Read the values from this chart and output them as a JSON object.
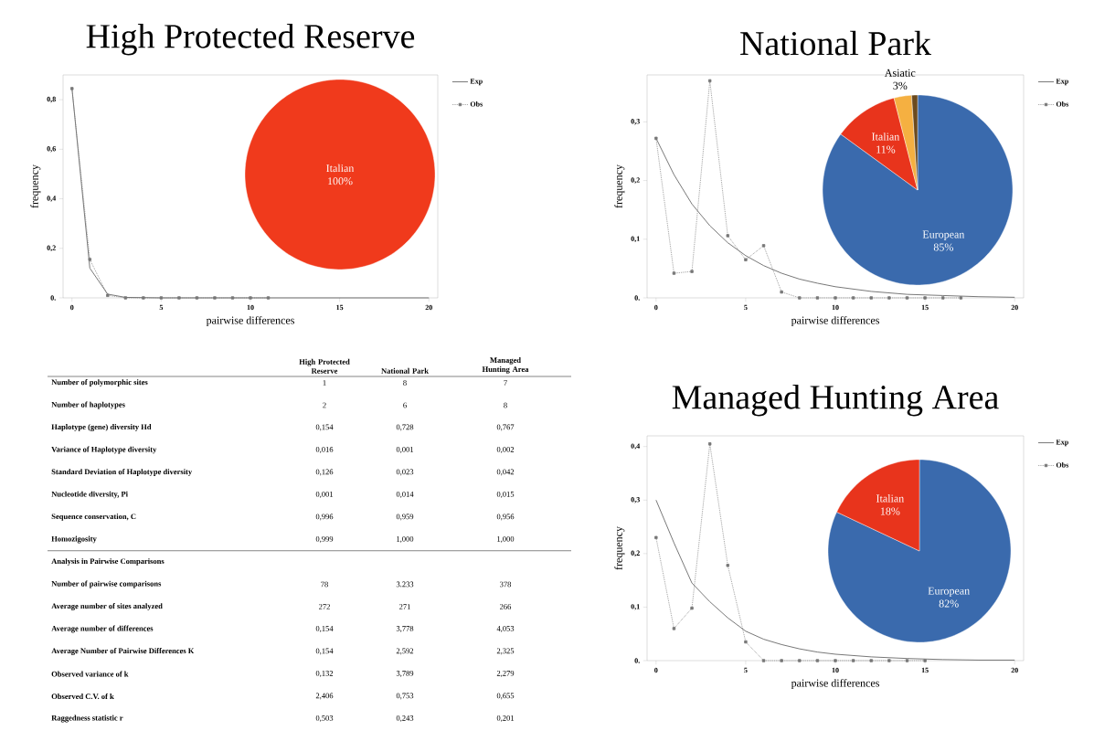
{
  "chart_data": [
    {
      "type": "line",
      "title": "High Protected Reserve",
      "xlabel": "pairwise differences",
      "ylabel": "frequency",
      "xlim": [
        -0.5,
        20.5
      ],
      "xticks": [
        0,
        5,
        10,
        15,
        20
      ],
      "ylim": [
        0,
        0.9
      ],
      "yticks": [
        {
          "value": 0,
          "label": "0."
        },
        {
          "value": 0.2,
          "label": "0,2"
        },
        {
          "value": 0.4,
          "label": "0,4"
        },
        {
          "value": 0.6,
          "label": "0,6"
        },
        {
          "value": 0.8,
          "label": "0,8"
        }
      ],
      "legend": "right",
      "series": [
        {
          "name": "Exp",
          "color": "#555555",
          "line_style": "solid",
          "marker": "none",
          "x": [
            0,
            1,
            2,
            3,
            5,
            10,
            15,
            20
          ],
          "values": [
            0.845,
            0.12,
            0.015,
            0.002,
            0,
            0,
            0,
            0
          ]
        },
        {
          "name": "Obs",
          "color": "#777777",
          "line_style": "dotted",
          "marker": "square",
          "x": [
            0,
            1,
            2,
            3,
            4,
            5,
            6,
            7,
            8,
            9,
            10,
            11
          ],
          "values": [
            0.845,
            0.155,
            0.01,
            0,
            0,
            0,
            0,
            0,
            0,
            0,
            0,
            0
          ]
        }
      ]
    },
    {
      "type": "pie",
      "categories": [
        "Italian"
      ],
      "values": [
        100
      ],
      "value_labels": [
        "100%"
      ],
      "colors": [
        "#f03a1c"
      ]
    },
    {
      "type": "line",
      "title": "National Park",
      "xlabel": "pairwise differences",
      "ylabel": "frequency",
      "xlim": [
        -0.5,
        20.5
      ],
      "xticks": [
        0,
        5,
        10,
        15,
        20
      ],
      "ylim": [
        0,
        0.38
      ],
      "yticks": [
        {
          "value": 0,
          "label": "0."
        },
        {
          "value": 0.1,
          "label": "0,1"
        },
        {
          "value": 0.2,
          "label": "0,2"
        },
        {
          "value": 0.3,
          "label": "0,3"
        }
      ],
      "legend": "right",
      "series": [
        {
          "name": "Exp",
          "color": "#555555",
          "line_style": "solid",
          "marker": "none",
          "x": [
            0,
            1,
            2,
            3,
            4,
            5,
            6,
            7,
            8,
            9,
            10,
            12,
            14,
            16,
            18,
            20
          ],
          "values": [
            0.272,
            0.21,
            0.16,
            0.123,
            0.094,
            0.072,
            0.055,
            0.042,
            0.032,
            0.025,
            0.019,
            0.011,
            0.006,
            0.004,
            0.002,
            0.001
          ]
        },
        {
          "name": "Obs",
          "color": "#777777",
          "line_style": "dotted",
          "marker": "square",
          "x": [
            0,
            1,
            2,
            3,
            4,
            5,
            6,
            7,
            8,
            9,
            10,
            11,
            12,
            13,
            14,
            15,
            16,
            17
          ],
          "values": [
            0.272,
            0.042,
            0.045,
            0.37,
            0.106,
            0.065,
            0.089,
            0.01,
            0,
            0,
            0,
            0,
            0,
            0,
            0,
            0,
            0,
            0
          ]
        }
      ]
    },
    {
      "type": "pie",
      "categories": [
        "European",
        "Italian",
        "Asiatic",
        null
      ],
      "values": [
        85,
        11,
        3,
        1
      ],
      "value_labels": [
        "85%",
        "11%",
        "3%",
        null
      ],
      "colors": [
        "#3a6aad",
        "#e8341c",
        "#f5b041",
        "#6b4a1e"
      ]
    },
    {
      "type": "other",
      "categories": [
        "High Protected Reserve",
        "National Park",
        "Managed Hunting Area"
      ],
      "y_categories": [
        "Number of polymorphic sites",
        "Number of haplotypes",
        "Haplotype (gene) diversity Hd",
        "Variance of Haplotype diversity",
        "Standard Deviation of Haplotype diversity",
        "Nucleotide diversity, Pi",
        "Sequence conservation, C",
        "Homozigosity",
        "Analysis in Pairwise Comparisons",
        "Number of pairwise comparisons",
        "Average number of sites analyzed",
        "Average number of differences",
        "Average Number of Pairwise Differences K",
        "Observed variance of k",
        "Observed C.V. of k",
        "Raggedness statistic r"
      ],
      "cell_labels": [
        [
          "1",
          "8",
          "7"
        ],
        [
          "2",
          "6",
          "8"
        ],
        [
          "0,154",
          "0,728",
          "0,767"
        ],
        [
          "0,016",
          "0,001",
          "0,002"
        ],
        [
          "0,126",
          "0,023",
          "0,042"
        ],
        [
          "0,001",
          "0,014",
          "0,015"
        ],
        [
          "0,996",
          "0,959",
          "0,956"
        ],
        [
          "0,999",
          "1,000",
          "1,000"
        ],
        [
          null,
          null,
          null
        ],
        [
          "78",
          "3.233",
          "378"
        ],
        [
          "272",
          "271",
          "266"
        ],
        [
          "0,154",
          "3,778",
          "4,053"
        ],
        [
          "0,154",
          "2,592",
          "2,325"
        ],
        [
          "0,132",
          "3,789",
          "2,279"
        ],
        [
          "2,406",
          "0,753",
          "0,655"
        ],
        [
          "0,503",
          "0,243",
          "0,201"
        ]
      ]
    },
    {
      "type": "line",
      "title": "Managed Hunting Area",
      "xlabel": "pairwise differences",
      "ylabel": "frequency",
      "xlim": [
        -0.5,
        20.5
      ],
      "xticks": [
        0,
        5,
        10,
        15,
        20
      ],
      "ylim": [
        0,
        0.42
      ],
      "yticks": [
        {
          "value": 0,
          "label": "0."
        },
        {
          "value": 0.1,
          "label": "0,1"
        },
        {
          "value": 0.2,
          "label": "0,2"
        },
        {
          "value": 0.3,
          "label": "0,3"
        },
        {
          "value": 0.4,
          "label": "0,4"
        }
      ],
      "legend": "right",
      "series": [
        {
          "name": "Exp",
          "color": "#555555",
          "line_style": "solid",
          "marker": "none",
          "x": [
            0,
            1,
            2,
            3,
            4,
            5,
            6,
            7,
            8,
            9,
            10,
            12,
            14,
            16,
            18,
            20
          ],
          "values": [
            0.3,
            0.22,
            0.145,
            0.11,
            0.08,
            0.055,
            0.04,
            0.03,
            0.022,
            0.016,
            0.012,
            0.007,
            0.004,
            0.002,
            0.001,
            0.001
          ]
        },
        {
          "name": "Obs",
          "color": "#777777",
          "line_style": "dotted",
          "marker": "square",
          "x": [
            0,
            1,
            2,
            3,
            4,
            5,
            6,
            7,
            8,
            9,
            10,
            11,
            12,
            13,
            14,
            15
          ],
          "values": [
            0.23,
            0.06,
            0.098,
            0.405,
            0.178,
            0.035,
            0,
            0,
            0,
            0,
            0,
            0,
            0,
            0,
            0,
            0
          ]
        }
      ]
    },
    {
      "type": "pie",
      "categories": [
        "European",
        "Italian"
      ],
      "values": [
        82,
        18
      ],
      "value_labels": [
        "82%",
        "18%"
      ],
      "colors": [
        "#3a6aad",
        "#e8341c"
      ]
    }
  ]
}
